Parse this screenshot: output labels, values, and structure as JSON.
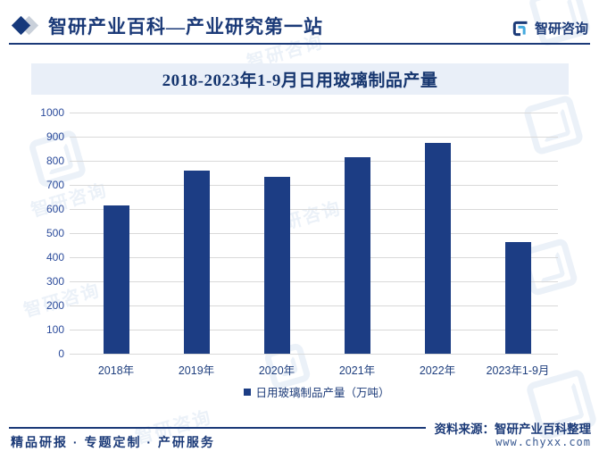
{
  "header": {
    "title": "智研产业百科—产业研究第一站",
    "logo_text": "智研咨询"
  },
  "watermark_text": "智研咨询",
  "chart_data": {
    "type": "bar",
    "title": "2018-2023年1-9月日用玻璃制品产量",
    "categories": [
      "2018年",
      "2019年",
      "2020年",
      "2021年",
      "2022年",
      "2023年1-9月"
    ],
    "values": [
      615,
      760,
      733,
      816,
      874,
      463
    ],
    "legend": "日用玻璃制品产量（万吨）",
    "xlabel": "",
    "ylabel": "",
    "ylim": [
      0,
      1000
    ],
    "yticks": [
      0,
      100,
      200,
      300,
      400,
      500,
      600,
      700,
      800,
      900,
      1000
    ],
    "grid": true,
    "legend_position": "bottom",
    "bar_color": "#1C3D84"
  },
  "footer": {
    "source_label": "资料来源：智研产业百科整理",
    "website": "www.chyxx.com",
    "services": "精品研报 · 专题定制 · 产研服务"
  },
  "colors": {
    "navy": "#1B3A78",
    "bar": "#1C3D84",
    "axis_label": "#2B4B9B",
    "gridline": "#D9D9D9",
    "banner_bg": "#E9EFF8",
    "logo_cyan": "#45AADF",
    "watermark": "#DFE8F4"
  }
}
